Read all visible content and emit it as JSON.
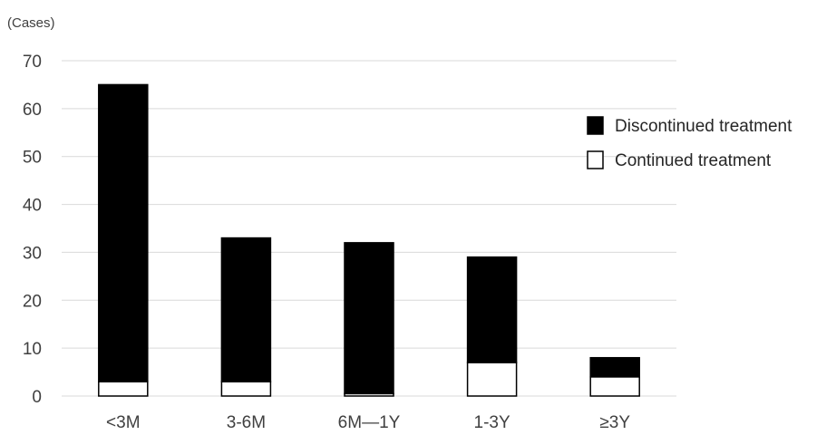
{
  "chart_data": {
    "type": "bar",
    "stacked": true,
    "ylabel": "(Cases)",
    "ylim": [
      0,
      70
    ],
    "yticks": [
      0,
      10,
      20,
      30,
      40,
      50,
      60,
      70
    ],
    "grid": true,
    "legend_position": "right",
    "categories": [
      "<3M",
      "3-6M",
      "6M—1Y",
      "1-3Y",
      "≥3Y"
    ],
    "series": [
      {
        "name": "Continued treatment",
        "color": "#ffffff",
        "values": [
          3,
          3,
          0.5,
          7,
          4
        ]
      },
      {
        "name": "Discontinued treatment",
        "color": "#000000",
        "values": [
          62,
          30,
          31.5,
          22,
          4
        ]
      }
    ],
    "legend": [
      {
        "label": "Discontinued treatment",
        "color": "#000000"
      },
      {
        "label": "Continued treatment",
        "color": "#ffffff"
      }
    ]
  }
}
